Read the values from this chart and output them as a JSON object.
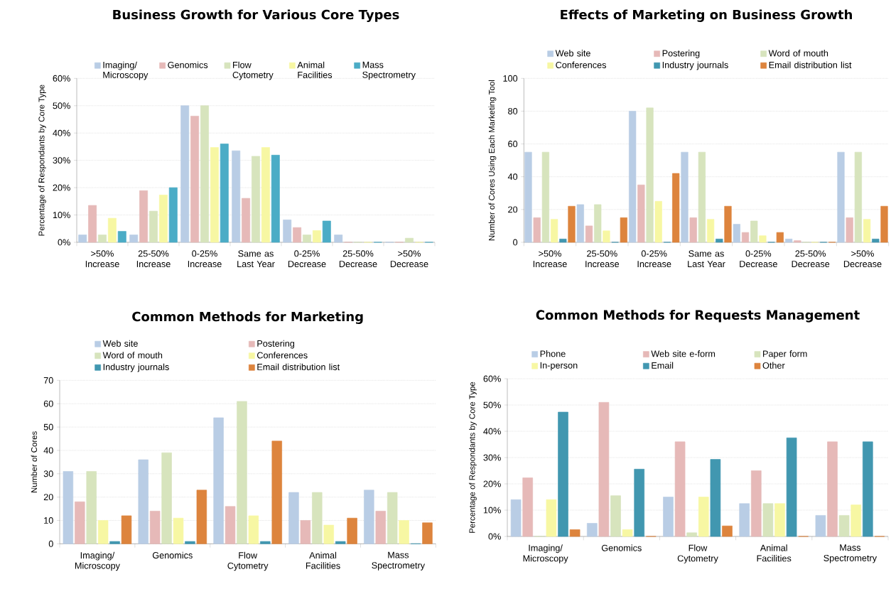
{
  "chart_data": [
    {
      "type": "bar",
      "title": "Business Growth for Various Core Types",
      "ylabel": "Percentage of Respondants by Core Type",
      "categories": [
        ">50% Increase",
        "25-50% Increase",
        "0-25% Increase",
        "Same as Last Year",
        "0-25% Decrease",
        "25-50% Decrease",
        ">50% Decrease"
      ],
      "series": [
        {
          "name": "Imaging/ Microscopy",
          "color": "#b9cde5",
          "values": [
            2.7,
            2.7,
            50,
            33.5,
            8.2,
            2.7,
            0
          ]
        },
        {
          "name": "Genomics",
          "color": "#e6b9b8",
          "values": [
            13.5,
            18.9,
            46.2,
            16.1,
            5.4,
            0,
            0
          ]
        },
        {
          "name": "Flow Cytometry",
          "color": "#d7e4bd",
          "values": [
            2.7,
            11.4,
            50,
            31.5,
            2.7,
            0,
            1.5
          ]
        },
        {
          "name": "Animal Facilities",
          "color": "#f7f7a3",
          "values": [
            8.8,
            17.3,
            34.7,
            34.7,
            4.3,
            0,
            0
          ]
        },
        {
          "name": "Mass Spectrometry",
          "color": "#4bacc6",
          "values": [
            4.0,
            20,
            36,
            31.9,
            7.8,
            0,
            0
          ]
        }
      ],
      "ylim": [
        0,
        60
      ],
      "yticks": [
        {
          "value": 0,
          "label": "0%"
        },
        {
          "value": 10,
          "label": "10%"
        },
        {
          "value": 20,
          "label": "20%"
        },
        {
          "value": 30,
          "label": "30%"
        },
        {
          "value": 40,
          "label": "40%"
        },
        {
          "value": 50,
          "label": "50%"
        },
        {
          "value": 60,
          "label": "60%"
        }
      ],
      "grid": "y",
      "legend": "top"
    },
    {
      "type": "bar",
      "title": "Effects of Marketing on Business Growth",
      "ylabel": "Number of Cores Using Each Marketing Tool",
      "categories": [
        ">50% Increase",
        "25-50% Increase",
        "0-25% Increase",
        "Same as Last Year",
        "0-25% Decrease",
        "25-50% Decrease",
        ">50% Decrease"
      ],
      "series": [
        {
          "name": "Web site",
          "color": "#b9cde5",
          "values": [
            55,
            23,
            80,
            55,
            11,
            2,
            55
          ]
        },
        {
          "name": "Postering",
          "color": "#e6b9b8",
          "values": [
            15,
            10,
            35,
            15,
            6,
            1,
            15
          ]
        },
        {
          "name": "Word of mouth",
          "color": "#d7e4bd",
          "values": [
            55,
            23,
            82,
            55,
            13,
            0,
            55
          ]
        },
        {
          "name": "Conferences",
          "color": "#f7f7a3",
          "values": [
            14,
            7,
            25,
            14,
            4,
            0,
            14
          ]
        },
        {
          "name": "Industry journals",
          "color": "#4197b0",
          "values": [
            2,
            0,
            0,
            2,
            0,
            0,
            2
          ]
        },
        {
          "name": "Email distribution list",
          "color": "#dd843d",
          "values": [
            22,
            15,
            42,
            22,
            6,
            0,
            22
          ]
        }
      ],
      "ylim": [
        0,
        100
      ],
      "yticks": [
        0,
        20,
        40,
        60,
        80,
        100
      ],
      "grid": "y",
      "legend": "top"
    },
    {
      "type": "bar",
      "title": "Common Methods for Marketing",
      "ylabel": "Number of Cores",
      "categories": [
        "Imaging/ Microscopy",
        "Genomics",
        "Flow Cytometry",
        "Animal Facilities",
        "Mass Spectrometry"
      ],
      "series": [
        {
          "name": "Web site",
          "color": "#b9cde5",
          "values": [
            31,
            36,
            54,
            22,
            23
          ]
        },
        {
          "name": "Postering",
          "color": "#e6b9b8",
          "values": [
            18,
            14,
            16,
            10,
            14
          ]
        },
        {
          "name": "Word of mouth",
          "color": "#d7e4bd",
          "values": [
            31,
            39,
            61,
            22,
            22
          ]
        },
        {
          "name": "Conferences",
          "color": "#f7f7a3",
          "values": [
            10,
            11,
            12,
            8,
            10
          ]
        },
        {
          "name": "Industry journals",
          "color": "#4197b0",
          "values": [
            1,
            1,
            1,
            1,
            0
          ]
        },
        {
          "name": "Email distribution list",
          "color": "#dd843d",
          "values": [
            12,
            23,
            44,
            11,
            9
          ]
        }
      ],
      "ylim": [
        0,
        70
      ],
      "yticks": [
        0,
        10,
        20,
        30,
        40,
        50,
        60,
        70
      ],
      "grid": "y",
      "legend": "top"
    },
    {
      "type": "bar",
      "title": "Common Methods for Requests Management",
      "ylabel": "Percentage of Respondants by Core Type",
      "categories": [
        "Imaging/ Microscopy",
        "Genomics",
        "Flow Cytometry",
        "Animal Facilities",
        "Mass Spectrometry"
      ],
      "series": [
        {
          "name": "Phone",
          "color": "#b9cde5",
          "values": [
            14,
            5,
            15,
            12.5,
            8
          ]
        },
        {
          "name": "Web site e-form",
          "color": "#e6b9b8",
          "values": [
            22.3,
            51,
            36,
            25,
            36
          ]
        },
        {
          "name": "Paper form",
          "color": "#d7e4bd",
          "values": [
            0,
            15.5,
            1.4,
            12.5,
            8
          ]
        },
        {
          "name": "In-person",
          "color": "#f7f7a3",
          "values": [
            14,
            2.6,
            15,
            12.5,
            12
          ]
        },
        {
          "name": "Email",
          "color": "#4197b0",
          "values": [
            47.3,
            25.6,
            29.3,
            37.5,
            36
          ]
        },
        {
          "name": "Other",
          "color": "#dd843d",
          "values": [
            2.6,
            0,
            4,
            0,
            0
          ]
        }
      ],
      "ylim": [
        0,
        60
      ],
      "yticks": [
        {
          "value": 0,
          "label": "0%"
        },
        {
          "value": 10,
          "label": "10%"
        },
        {
          "value": 20,
          "label": "20%"
        },
        {
          "value": 30,
          "label": "30%"
        },
        {
          "value": 40,
          "label": "40%"
        },
        {
          "value": 50,
          "label": "50%"
        },
        {
          "value": 60,
          "label": "60%"
        }
      ],
      "grid": "y",
      "legend": "top"
    }
  ]
}
